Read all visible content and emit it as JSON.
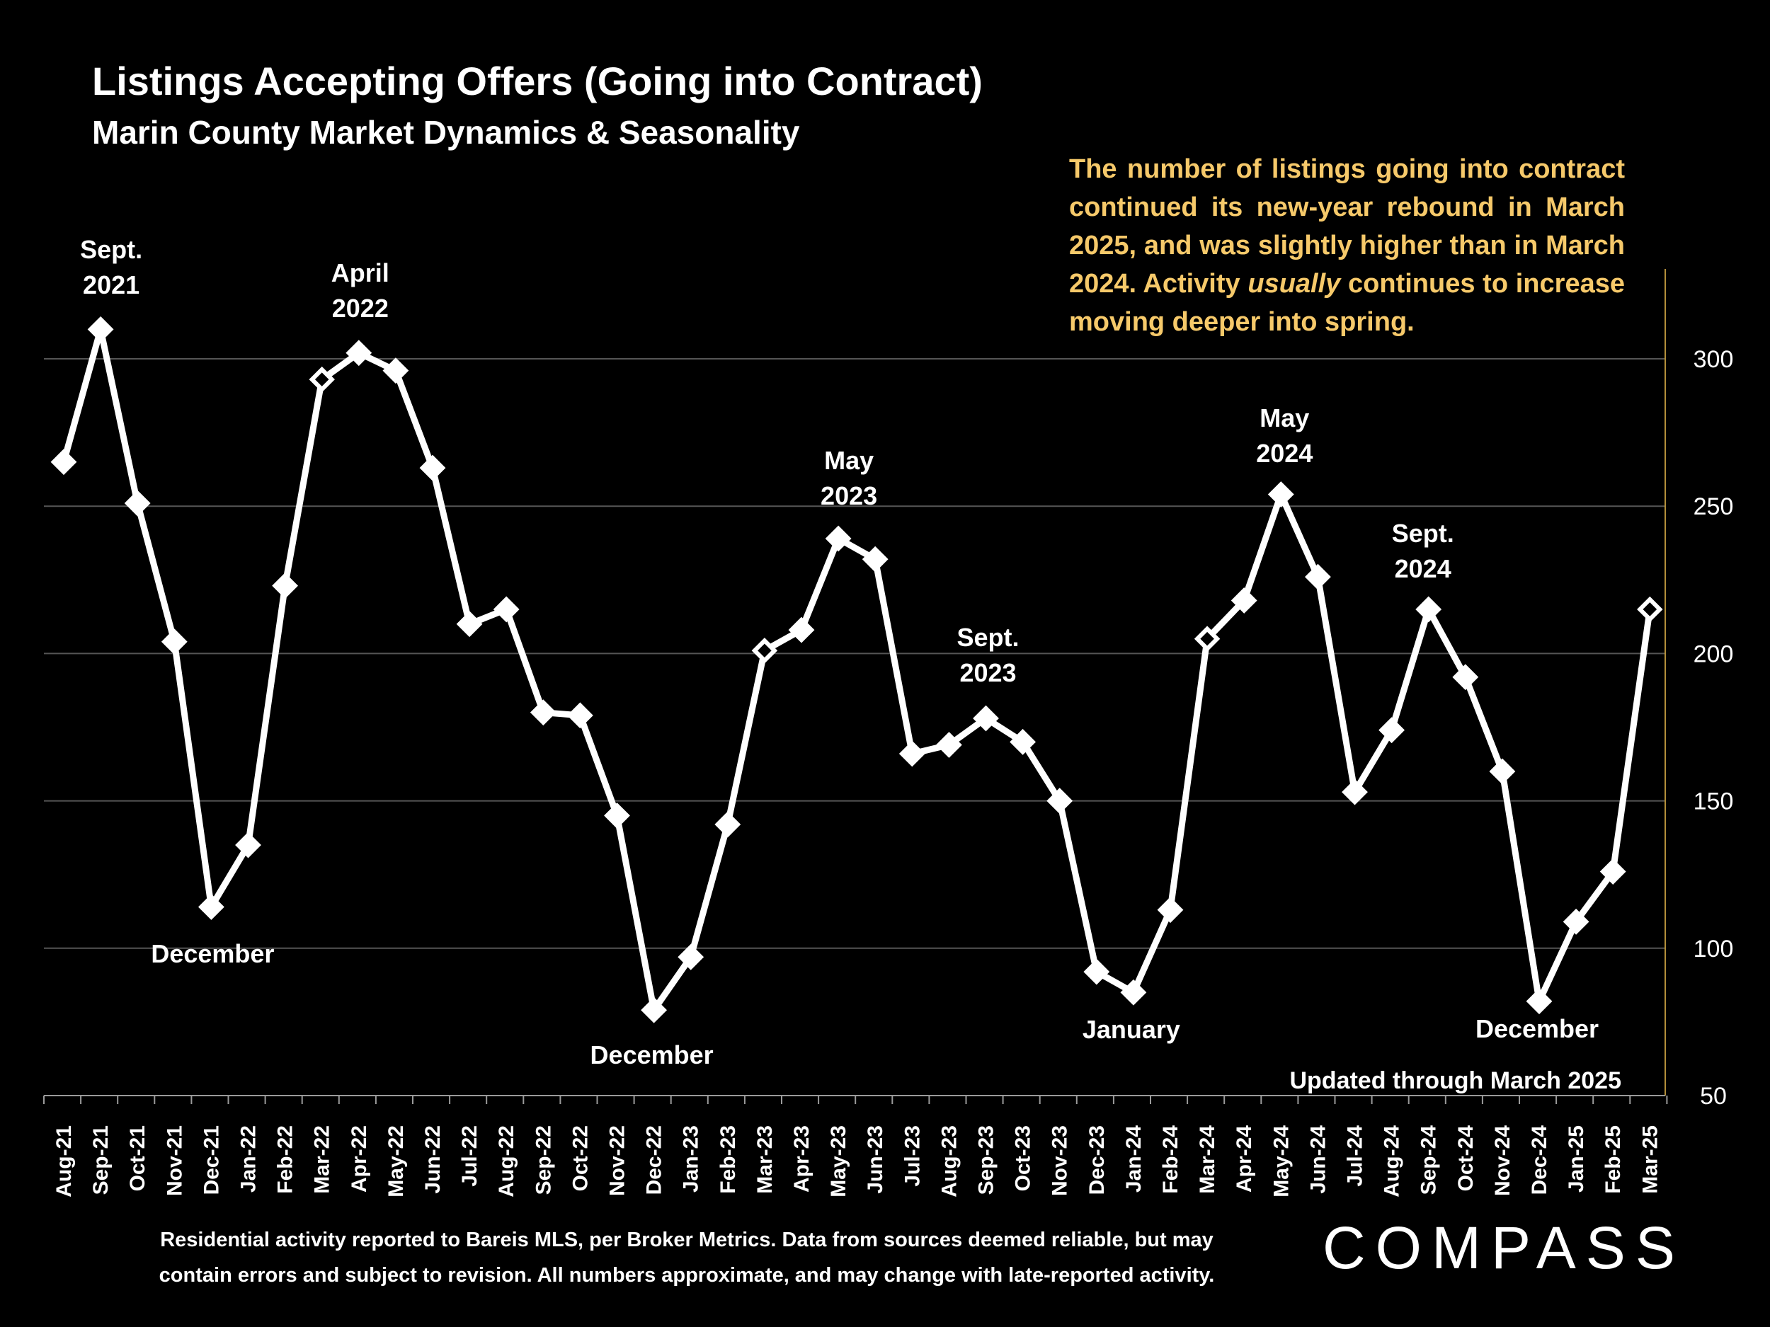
{
  "title": "Listings Accepting Offers (Going into Contract)",
  "subtitle": "Marin County Market Dynamics & Seasonality",
  "note": {
    "part1": "The number of listings going into contract continued its new-year rebound in March 2025, and was slightly higher than in March 2024. Activity ",
    "emphasis": "usually",
    "part2": " continues to increase moving deeper into spring."
  },
  "updated_label": "Updated through March 2025",
  "footer": {
    "line1": "Residential activity reported to Bareis MLS, per Broker Metrics. Data from sources deemed reliable, but may",
    "line2": "contain errors and subject to revision. All numbers approximate, and may change with late-reported activity."
  },
  "logo": "COMPASS",
  "colors": {
    "background": "#000000",
    "line": "#ffffff",
    "note": "#f6c96a",
    "grid": "#555555",
    "axis": "#b38f3a"
  },
  "chart_data": {
    "type": "line",
    "title": "Listings Accepting Offers (Going into Contract)",
    "xlabel": "",
    "ylabel": "",
    "ylim": [
      50,
      320
    ],
    "yticks": [
      50,
      100,
      150,
      200,
      250,
      300
    ],
    "grid": true,
    "categories": [
      "Aug-21",
      "Sep-21",
      "Oct-21",
      "Nov-21",
      "Dec-21",
      "Jan-22",
      "Feb-22",
      "Mar-22",
      "Apr-22",
      "May-22",
      "Jun-22",
      "Jul-22",
      "Aug-22",
      "Sep-22",
      "Oct-22",
      "Nov-22",
      "Dec-22",
      "Jan-23",
      "Feb-23",
      "Mar-23",
      "Apr-23",
      "May-23",
      "Jun-23",
      "Jul-23",
      "Aug-23",
      "Sep-23",
      "Oct-23",
      "Nov-23",
      "Dec-23",
      "Jan-24",
      "Feb-24",
      "Mar-24",
      "Apr-24",
      "May-24",
      "Jun-24",
      "Jul-24",
      "Aug-24",
      "Sep-24",
      "Oct-24",
      "Nov-24",
      "Dec-24",
      "Jan-25",
      "Feb-25",
      "Mar-25"
    ],
    "series": [
      {
        "name": "Listings Accepting Offers",
        "values": [
          265,
          310,
          251,
          204,
          114,
          135,
          223,
          293,
          302,
          296,
          263,
          210,
          215,
          180,
          179,
          145,
          79,
          97,
          142,
          201,
          208,
          239,
          232,
          166,
          169,
          178,
          170,
          150,
          92,
          85,
          113,
          205,
          218,
          254,
          226,
          153,
          174,
          215,
          192,
          160,
          82,
          109,
          126,
          215
        ],
        "hollow_markers": [
          "Mar-22",
          "Mar-23",
          "Mar-24",
          "Mar-25"
        ]
      }
    ],
    "annotations": [
      {
        "line1": "Sept.",
        "line2": "2021",
        "at": "Sep-21"
      },
      {
        "line1": "April",
        "line2": "2022",
        "at": "Apr-22"
      },
      {
        "line1": "May",
        "line2": "2023",
        "at": "May-23"
      },
      {
        "line1": "Sept.",
        "line2": "2023",
        "at": "Sep-23"
      },
      {
        "line1": "May",
        "line2": "2024",
        "at": "May-24"
      },
      {
        "line1": "Sept.",
        "line2": "2024",
        "at": "Sep-24"
      },
      {
        "line1": "December",
        "line2": "",
        "at": "Dec-21"
      },
      {
        "line1": "December",
        "line2": "",
        "at": "Dec-22"
      },
      {
        "line1": "January",
        "line2": "",
        "at": "Jan-24"
      },
      {
        "line1": "December",
        "line2": "",
        "at": "Dec-24"
      }
    ]
  }
}
